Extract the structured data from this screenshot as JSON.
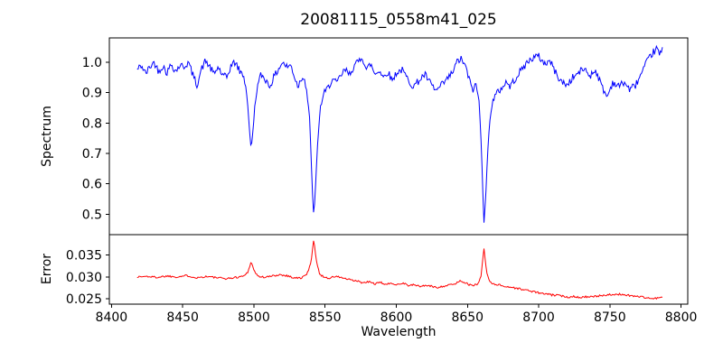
{
  "title": "20081115_0558m41_025",
  "colors": {
    "spectrum_line": "#0000ff",
    "error_line": "#ff0000",
    "axis": "#000000",
    "background": "#ffffff"
  },
  "chart_data": [
    {
      "type": "line",
      "title": "20081115_0558m41_025",
      "ylabel": "Spectrum",
      "series_name": "spectrum",
      "color": "#0000ff",
      "xlim": [
        8398.5,
        8804.7
      ],
      "ylim": [
        0.433,
        1.08
      ],
      "yticks": [
        0.5,
        0.6,
        0.7,
        0.8,
        0.9,
        1.0
      ],
      "yticklabels": [
        "0.5",
        "0.6",
        "0.7",
        "0.8",
        "0.9",
        "1.0"
      ],
      "x_tick_labels_visible": false,
      "grid": false,
      "noise_band": 0.012,
      "sample_step": 0.7,
      "x": [
        8418,
        8421,
        8424,
        8427,
        8430,
        8433,
        8436,
        8439,
        8442,
        8445,
        8448,
        8451,
        8454,
        8457,
        8460,
        8463,
        8466,
        8469,
        8472,
        8475,
        8478,
        8481,
        8484,
        8487,
        8490,
        8493,
        8495.5,
        8497,
        8498.3,
        8500,
        8502,
        8505,
        8508,
        8511,
        8514,
        8517,
        8520,
        8523,
        8526,
        8529,
        8531,
        8533,
        8535,
        8537,
        8539,
        8540.5,
        8542,
        8543.5,
        8545,
        8547,
        8549,
        8552,
        8555,
        8558,
        8561,
        8564,
        8567,
        8570,
        8573,
        8576,
        8579,
        8582,
        8585,
        8588,
        8591,
        8594,
        8597,
        8600,
        8604,
        8608,
        8612,
        8616,
        8620,
        8624,
        8628,
        8632,
        8636,
        8640,
        8643,
        8646,
        8649,
        8652,
        8654,
        8656,
        8658,
        8660,
        8661.5,
        8663,
        8664.5,
        8666,
        8668,
        8671,
        8674,
        8677,
        8680,
        8684,
        8688,
        8692,
        8696,
        8700,
        8704,
        8708,
        8712,
        8716,
        8720,
        8724,
        8728,
        8732,
        8736,
        8740,
        8744,
        8748,
        8752,
        8756,
        8760,
        8764,
        8768,
        8772,
        8776,
        8780,
        8783,
        8785,
        8787
      ],
      "y": [
        0.975,
        0.99,
        0.962,
        0.985,
        1.0,
        0.97,
        0.988,
        0.965,
        0.995,
        0.97,
        0.99,
        0.985,
        1.0,
        0.96,
        0.925,
        0.975,
        1.005,
        0.985,
        0.96,
        0.985,
        0.955,
        0.95,
        0.99,
        1.0,
        0.97,
        0.955,
        0.88,
        0.76,
        0.715,
        0.82,
        0.91,
        0.96,
        0.945,
        0.92,
        0.95,
        0.975,
        1.0,
        0.985,
        0.99,
        0.945,
        0.92,
        0.945,
        0.955,
        0.91,
        0.82,
        0.65,
        0.487,
        0.6,
        0.76,
        0.86,
        0.895,
        0.915,
        0.945,
        0.93,
        0.955,
        0.975,
        0.96,
        0.985,
        1.0,
        1.02,
        0.975,
        0.995,
        0.96,
        0.975,
        0.95,
        0.97,
        0.94,
        0.965,
        0.975,
        0.945,
        0.92,
        0.94,
        0.96,
        0.93,
        0.905,
        0.925,
        0.945,
        0.97,
        1.005,
        1.01,
        0.98,
        0.93,
        0.91,
        0.925,
        0.88,
        0.7,
        0.475,
        0.58,
        0.72,
        0.835,
        0.875,
        0.9,
        0.915,
        0.935,
        0.92,
        0.95,
        0.975,
        1.0,
        1.015,
        1.02,
        0.995,
        1.005,
        0.965,
        0.935,
        0.925,
        0.95,
        0.965,
        0.98,
        0.955,
        0.975,
        0.925,
        0.885,
        0.935,
        0.92,
        0.935,
        0.91,
        0.925,
        0.96,
        1.0,
        1.03,
        1.045,
        1.025,
        1.04
      ]
    },
    {
      "type": "line",
      "ylabel": "Error",
      "xlabel": "Wavelength",
      "series_name": "error",
      "color": "#ff0000",
      "xlim": [
        8398.5,
        8804.7
      ],
      "ylim": [
        0.0238,
        0.0396
      ],
      "yticks": [
        0.025,
        0.03,
        0.035
      ],
      "yticklabels": [
        "0.025",
        "0.030",
        "0.035"
      ],
      "xticks": [
        8400,
        8450,
        8500,
        8550,
        8600,
        8650,
        8700,
        8750,
        8800
      ],
      "xticklabels": [
        "8400",
        "8450",
        "8500",
        "8550",
        "8600",
        "8650",
        "8700",
        "8750",
        "8800"
      ],
      "grid": false,
      "noise_band": 0.00022,
      "sample_step": 0.7,
      "x": [
        8418,
        8425,
        8432,
        8439,
        8446,
        8453,
        8460,
        8467,
        8474,
        8481,
        8488,
        8493,
        8496,
        8498,
        8500,
        8503,
        8508,
        8513,
        8518,
        8523,
        8528,
        8533,
        8537,
        8540,
        8542,
        8544,
        8546,
        8549,
        8553,
        8557,
        8561,
        8565,
        8569,
        8573,
        8577,
        8581,
        8585,
        8589,
        8593,
        8597,
        8601,
        8605,
        8609,
        8613,
        8617,
        8621,
        8625,
        8629,
        8633,
        8637,
        8641,
        8645,
        8648,
        8651,
        8654,
        8657,
        8659.5,
        8661.5,
        8663.5,
        8666,
        8669,
        8673,
        8677,
        8681,
        8685,
        8689,
        8693,
        8697,
        8701,
        8705,
        8709,
        8713,
        8717,
        8721,
        8725,
        8729,
        8733,
        8737,
        8741,
        8745,
        8749,
        8753,
        8757,
        8761,
        8765,
        8769,
        8773,
        8777,
        8781,
        8784,
        8787
      ],
      "y": [
        0.03,
        0.0301,
        0.0299,
        0.0302,
        0.03,
        0.0303,
        0.0298,
        0.0301,
        0.0298,
        0.0296,
        0.0299,
        0.0302,
        0.0312,
        0.0336,
        0.0315,
        0.0301,
        0.0299,
        0.0302,
        0.0305,
        0.0303,
        0.0298,
        0.0297,
        0.0305,
        0.033,
        0.0387,
        0.0335,
        0.0307,
        0.03,
        0.0297,
        0.0301,
        0.0299,
        0.0295,
        0.0292,
        0.029,
        0.0286,
        0.0289,
        0.0284,
        0.0287,
        0.0283,
        0.0285,
        0.0283,
        0.0286,
        0.028,
        0.0282,
        0.0278,
        0.0281,
        0.0278,
        0.0276,
        0.0279,
        0.0281,
        0.0284,
        0.0291,
        0.0288,
        0.0282,
        0.028,
        0.0284,
        0.03,
        0.0366,
        0.031,
        0.0287,
        0.0284,
        0.0281,
        0.0278,
        0.0276,
        0.0274,
        0.0271,
        0.0269,
        0.0266,
        0.0263,
        0.0261,
        0.0259,
        0.0258,
        0.0256,
        0.0254,
        0.0256,
        0.0253,
        0.0255,
        0.0254,
        0.0256,
        0.0258,
        0.026,
        0.0258,
        0.0261,
        0.0259,
        0.0257,
        0.0256,
        0.0254,
        0.0252,
        0.025,
        0.0253,
        0.0252
      ]
    }
  ]
}
